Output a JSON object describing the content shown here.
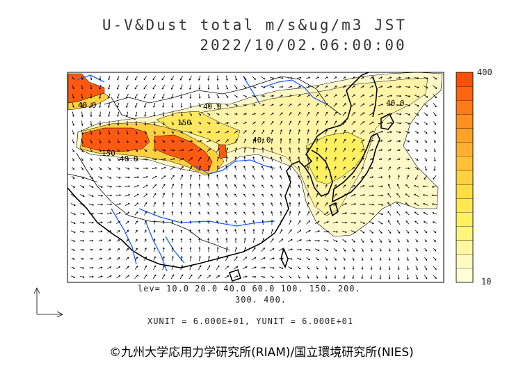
{
  "title": {
    "line1": "U-V&Dust total m/s&ug/m3 JST",
    "line2": "2022/10/02.06:00:00"
  },
  "levels": {
    "line1": "lev= 10.0 20.0 40.0 60.0 100. 150. 200.",
    "line2": "300. 400."
  },
  "units": "XUNIT = 6.000E+01, YUNIT = 6.000E+01",
  "colorbar": {
    "max_label": "400",
    "min_label": "10",
    "colors": [
      "#ffffd8",
      "#fffbc0",
      "#fff8a0",
      "#fff480",
      "#fff060",
      "#ffe850",
      "#ffdd44",
      "#ffd040",
      "#ffc038",
      "#ffb030",
      "#ffa028",
      "#ff9020",
      "#ff7a18",
      "#ff6410",
      "#ff5008"
    ]
  },
  "contour_labels": [
    "40.0",
    "40.0",
    "150",
    "40.0",
    "40.0",
    "40.0",
    "150"
  ],
  "copyright": "©九州大学応用力学研究所(RIAM)/国立環境研究所(NIES)",
  "colors": {
    "coast": "#000000",
    "river": "#1a5cff",
    "dust_high": "#ff5a10",
    "dust_mid": "#ffd040",
    "dust_low": "#fff6a8"
  }
}
